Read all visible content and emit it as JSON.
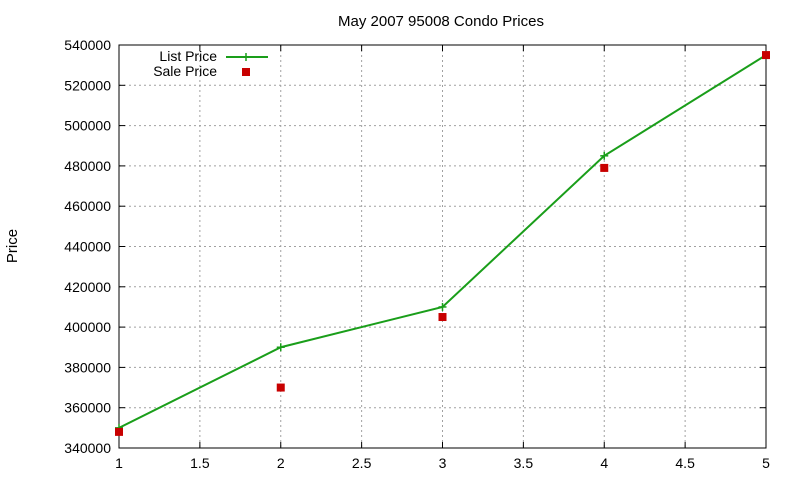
{
  "chart_data": {
    "type": "line",
    "title": "May 2007 95008 Condo Prices",
    "xlabel": "",
    "ylabel": "Price",
    "xlim": [
      1,
      5
    ],
    "ylim": [
      340000,
      540000
    ],
    "xticks": [
      "1",
      "1.5",
      "2",
      "2.5",
      "3",
      "3.5",
      "4",
      "4.5",
      "5"
    ],
    "yticks": [
      "340000",
      "360000",
      "380000",
      "400000",
      "420000",
      "440000",
      "460000",
      "480000",
      "500000",
      "520000",
      "540000"
    ],
    "grid": true,
    "legend_position": "top-left",
    "series": [
      {
        "name": "List Price",
        "style": "linespoints",
        "color": "#1a9e1a",
        "x": [
          1,
          2,
          3,
          4,
          5
        ],
        "y": [
          350000,
          390000,
          410000,
          485000,
          535000
        ]
      },
      {
        "name": "Sale Price",
        "style": "points",
        "color": "#c80000",
        "x": [
          1,
          2,
          3,
          4,
          5
        ],
        "y": [
          348000,
          370000,
          405000,
          479000,
          535000
        ]
      }
    ]
  }
}
